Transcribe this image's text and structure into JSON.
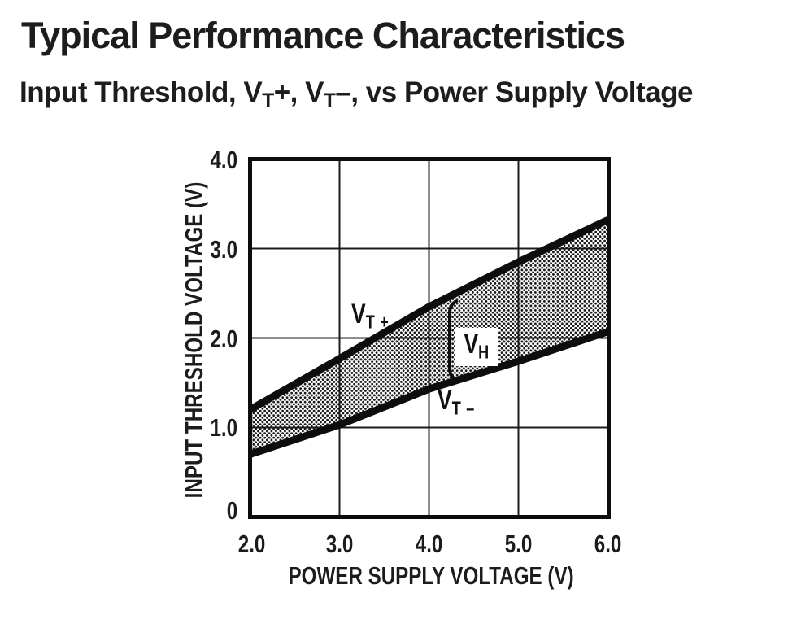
{
  "header": {
    "title": "Typical Performance Characteristics"
  },
  "subtitle": {
    "seg1": "Input Threshold, V",
    "sub1": "T",
    "seg2": "+, V",
    "sub2": "T",
    "seg3": "–, vs Power Supply Voltage"
  },
  "chart_data": {
    "type": "area",
    "title": "Input Threshold, VT+, VT-, vs Power Supply Voltage",
    "xlabel": "POWER SUPPLY VOLTAGE (V)",
    "ylabel": "INPUT THRESHOLD VOLTAGE (V)",
    "xlim": [
      2.0,
      6.0
    ],
    "ylim": [
      0.0,
      4.0
    ],
    "grid": true,
    "x": [
      2.0,
      3.0,
      4.0,
      5.0,
      6.0
    ],
    "x_tick_labels": [
      "2.0",
      "3.0",
      "4.0",
      "5.0",
      "6.0"
    ],
    "y_tick_labels": [
      "4.0",
      "3.0",
      "2.0",
      "1.0",
      "0"
    ],
    "series": [
      {
        "name": "VT+",
        "label_base": "V",
        "label_sub": "T +",
        "values": [
          1.2,
          1.77,
          2.35,
          2.85,
          3.32
        ]
      },
      {
        "name": "VT-",
        "label_base": "V",
        "label_sub": "T –",
        "values": [
          0.7,
          1.03,
          1.43,
          1.74,
          2.07
        ]
      }
    ],
    "band_fill": "stipple",
    "annotation": {
      "label_base": "V",
      "label_sub": "H",
      "at_x": 4.25
    }
  },
  "colors": {
    "ink": "#1c1c1c",
    "background": "#ffffff"
  }
}
